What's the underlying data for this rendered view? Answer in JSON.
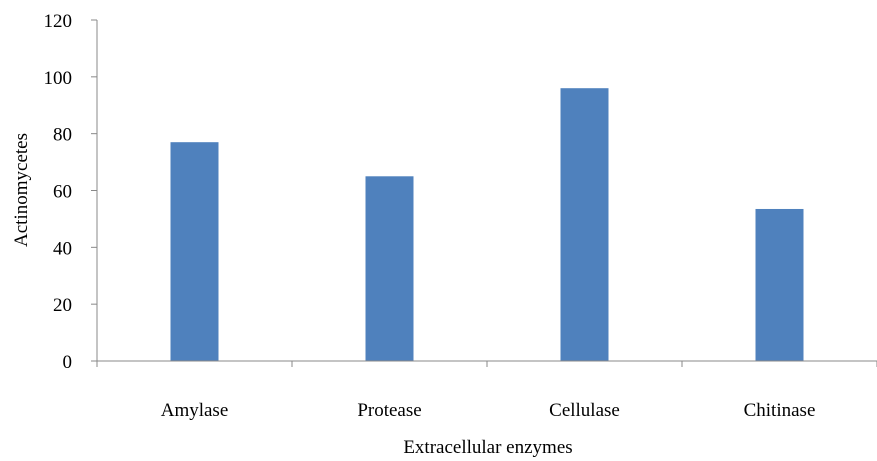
{
  "chart_data": {
    "type": "bar",
    "categories": [
      "Amylase",
      "Protease",
      "Cellulase",
      "Chitinase"
    ],
    "values": [
      77,
      65,
      96,
      53.5
    ],
    "title": "",
    "xlabel": "Extracellular enzymes",
    "ylabel": "Actinomycetes",
    "ylim": [
      0,
      120
    ],
    "yticks": [
      "0",
      "20",
      "40",
      "60",
      "80",
      "100",
      "120"
    ],
    "ytick_values": [
      0,
      20,
      40,
      60,
      80,
      100,
      120
    ],
    "grid": false,
    "legend": "none",
    "bar_color": "#4F81BD",
    "axis_color": "#888888"
  }
}
